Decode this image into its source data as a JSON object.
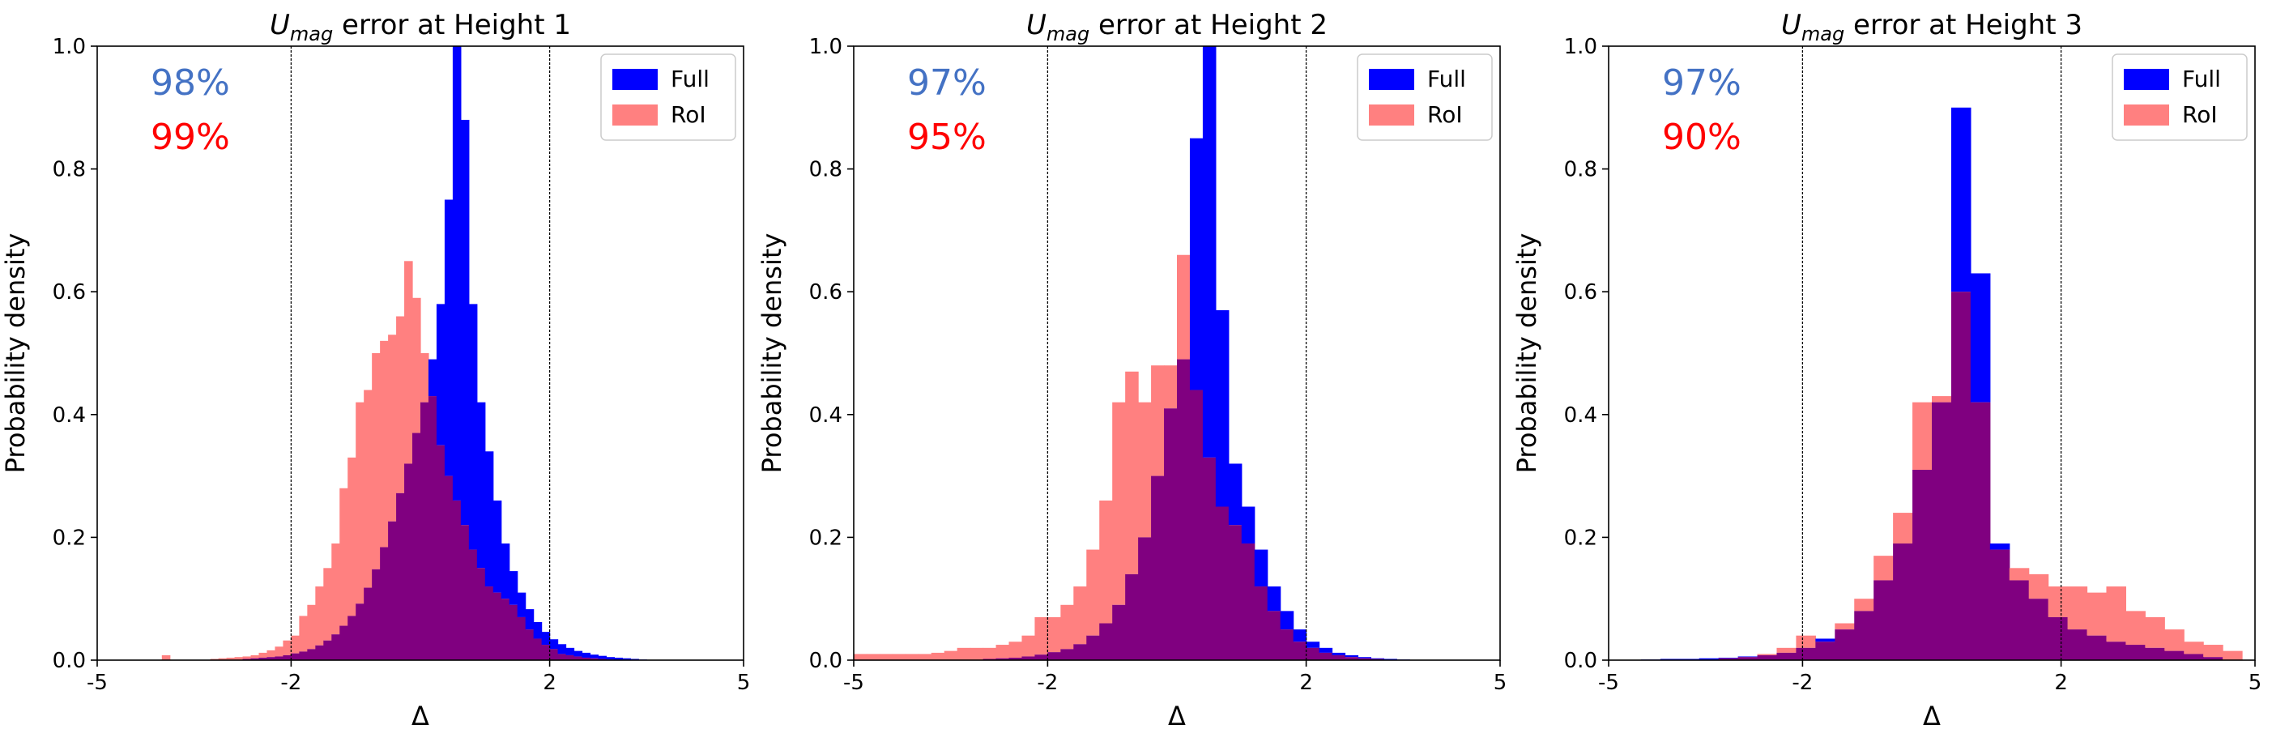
{
  "colors": {
    "full": "#0000ff",
    "roi": "#ff8080",
    "overlap": "#800080",
    "pct_full": "#4472c4",
    "pct_roi": "#ff0000"
  },
  "chart_data": [
    {
      "type": "bar",
      "title": "error at Height 1",
      "title_symbol": "U",
      "title_subscript": "mag",
      "xlabel": "Δ",
      "ylabel": "Probability density",
      "xlim": [
        -5,
        5
      ],
      "ylim": [
        0,
        1.0
      ],
      "xticks": [
        -5,
        -2,
        2,
        5
      ],
      "xtick_labels": [
        "-5",
        "-2",
        "2",
        "5"
      ],
      "yticks": [
        0,
        0.2,
        0.4,
        0.6,
        0.8,
        1.0
      ],
      "ytick_labels": [
        "0.0",
        "0.2",
        "0.4",
        "0.6",
        "0.8",
        "1.0"
      ],
      "vlines": [
        -2,
        2
      ],
      "legend": {
        "position": "top-right",
        "entries": [
          "Full",
          "RoI"
        ]
      },
      "annotations": {
        "full_pct": "98%",
        "roi_pct": "99%"
      },
      "bin_start": -4.0,
      "bin_width": 0.125,
      "series": [
        {
          "name": "Full",
          "values": [
            0,
            0,
            0,
            0,
            0,
            0,
            0,
            0,
            0,
            0,
            0.002,
            0.003,
            0.004,
            0.005,
            0.006,
            0.008,
            0.011,
            0.014,
            0.018,
            0.024,
            0.032,
            0.042,
            0.056,
            0.072,
            0.092,
            0.118,
            0.148,
            0.184,
            0.226,
            0.272,
            0.32,
            0.37,
            0.42,
            0.49,
            0.58,
            0.75,
            1.02,
            0.88,
            0.58,
            0.42,
            0.34,
            0.26,
            0.19,
            0.145,
            0.11,
            0.083,
            0.062,
            0.046,
            0.034,
            0.026,
            0.02,
            0.015,
            0.012,
            0.009,
            0.007,
            0.005,
            0.004,
            0.003,
            0.002,
            0.001,
            0,
            0,
            0,
            0
          ]
        },
        {
          "name": "RoI",
          "values": [
            0.008,
            0,
            0,
            0,
            0,
            0,
            0.002,
            0.003,
            0.004,
            0.005,
            0.006,
            0.008,
            0.012,
            0.016,
            0.022,
            0.032,
            0.04,
            0.072,
            0.09,
            0.12,
            0.15,
            0.19,
            0.28,
            0.33,
            0.42,
            0.44,
            0.5,
            0.52,
            0.53,
            0.56,
            0.65,
            0.59,
            0.5,
            0.43,
            0.35,
            0.3,
            0.26,
            0.22,
            0.18,
            0.15,
            0.12,
            0.11,
            0.1,
            0.09,
            0.07,
            0.05,
            0.035,
            0.025,
            0.018,
            0.01,
            0.008,
            0.006,
            0.004,
            0.003,
            0.002,
            0.001,
            0,
            0,
            0,
            0,
            0,
            0,
            0,
            0
          ]
        }
      ]
    },
    {
      "type": "bar",
      "title": "error at Height 2",
      "title_symbol": "U",
      "title_subscript": "mag",
      "xlabel": "Δ",
      "ylabel": "Probability density",
      "xlim": [
        -5,
        5
      ],
      "ylim": [
        0,
        1.0
      ],
      "xticks": [
        -5,
        -2,
        2,
        5
      ],
      "xtick_labels": [
        "-5",
        "-2",
        "2",
        "5"
      ],
      "yticks": [
        0,
        0.2,
        0.4,
        0.6,
        0.8,
        1.0
      ],
      "ytick_labels": [
        "0.0",
        "0.2",
        "0.4",
        "0.6",
        "0.8",
        "1.0"
      ],
      "vlines": [
        -2,
        2
      ],
      "legend": {
        "position": "top-right",
        "entries": [
          "Full",
          "RoI"
        ]
      },
      "annotations": {
        "full_pct": "97%",
        "roi_pct": "95%"
      },
      "bin_start": -5.0,
      "bin_width": 0.2,
      "series": [
        {
          "name": "Full",
          "values": [
            0,
            0,
            0,
            0,
            0,
            0,
            0,
            0,
            0,
            0,
            0.002,
            0.003,
            0.004,
            0.006,
            0.009,
            0.013,
            0.018,
            0.026,
            0.04,
            0.06,
            0.09,
            0.14,
            0.2,
            0.3,
            0.41,
            0.49,
            0.85,
            1.02,
            0.57,
            0.32,
            0.25,
            0.18,
            0.12,
            0.08,
            0.05,
            0.03,
            0.02,
            0.012,
            0.008,
            0.005,
            0.003,
            0.002,
            0.001,
            0,
            0,
            0,
            0,
            0,
            0,
            0
          ]
        },
        {
          "name": "RoI",
          "values": [
            0.01,
            0.01,
            0.01,
            0.01,
            0.01,
            0.01,
            0.012,
            0.015,
            0.02,
            0.02,
            0.02,
            0.025,
            0.03,
            0.04,
            0.07,
            0.07,
            0.09,
            0.12,
            0.18,
            0.26,
            0.42,
            0.47,
            0.42,
            0.48,
            0.48,
            0.66,
            0.44,
            0.33,
            0.25,
            0.22,
            0.19,
            0.12,
            0.08,
            0.05,
            0.03,
            0.02,
            0.012,
            0.008,
            0.005,
            0.003,
            0.002,
            0,
            0,
            0,
            0,
            0,
            0,
            0,
            0,
            0
          ]
        }
      ]
    },
    {
      "type": "bar",
      "title": "error at Height 3",
      "title_symbol": "U",
      "title_subscript": "mag",
      "xlabel": "Δ",
      "ylabel": "Probability density",
      "xlim": [
        -5,
        5
      ],
      "ylim": [
        0,
        1.0
      ],
      "xticks": [
        -5,
        -2,
        2,
        5
      ],
      "xtick_labels": [
        "-5",
        "-2",
        "2",
        "5"
      ],
      "yticks": [
        0,
        0.2,
        0.4,
        0.6,
        0.8,
        1.0
      ],
      "ytick_labels": [
        "0.0",
        "0.2",
        "0.4",
        "0.6",
        "0.8",
        "1.0"
      ],
      "vlines": [
        -2,
        2
      ],
      "legend": {
        "position": "top-right",
        "entries": [
          "Full",
          "RoI"
        ]
      },
      "annotations": {
        "full_pct": "97%",
        "roi_pct": "90%"
      },
      "bin_start": -4.5,
      "bin_width": 0.3,
      "series": [
        {
          "name": "Full",
          "values": [
            0.001,
            0.002,
            0.002,
            0.003,
            0.004,
            0.006,
            0.008,
            0.012,
            0.02,
            0.035,
            0.05,
            0.08,
            0.13,
            0.19,
            0.31,
            0.42,
            0.9,
            0.63,
            0.19,
            0.13,
            0.1,
            0.07,
            0.05,
            0.04,
            0.03,
            0.025,
            0.02,
            0.015,
            0.01,
            0.005,
            0,
            0,
            0,
            0
          ]
        },
        {
          "name": "RoI",
          "values": [
            0,
            0,
            0,
            0,
            0.003,
            0.005,
            0.01,
            0.02,
            0.04,
            0.03,
            0.06,
            0.1,
            0.17,
            0.24,
            0.42,
            0.43,
            0.6,
            0.42,
            0.18,
            0.15,
            0.14,
            0.12,
            0.12,
            0.11,
            0.12,
            0.08,
            0.07,
            0.05,
            0.03,
            0.025,
            0.015,
            0.0,
            0,
            0
          ]
        }
      ]
    }
  ]
}
